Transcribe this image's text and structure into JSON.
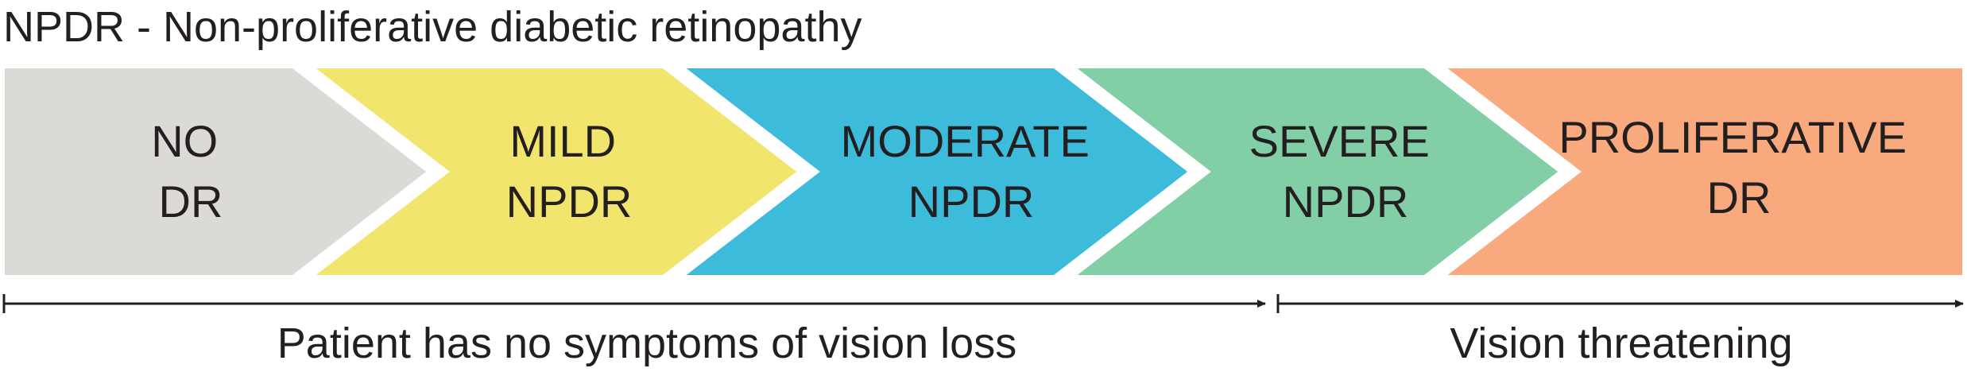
{
  "title": "NPDR - Non-proliferative diabetic retinopathy",
  "stages": [
    {
      "line1": "NO",
      "line2": "DR",
      "color": "#dcdad7"
    },
    {
      "line1": "MILD",
      "line2": "NPDR",
      "color": "#f2e56d"
    },
    {
      "line1": "MODERATE",
      "line2": "NPDR",
      "color": "#3dbbda"
    },
    {
      "line1": "SEVERE",
      "line2": "NPDR",
      "color": "#81cea7"
    },
    {
      "line1": "PROLIFERATIVE",
      "line2": "DR",
      "color": "#f9a97e"
    }
  ],
  "ranges": [
    {
      "label": "Patient has no symptoms of vision loss"
    },
    {
      "label": "Vision threatening"
    }
  ]
}
